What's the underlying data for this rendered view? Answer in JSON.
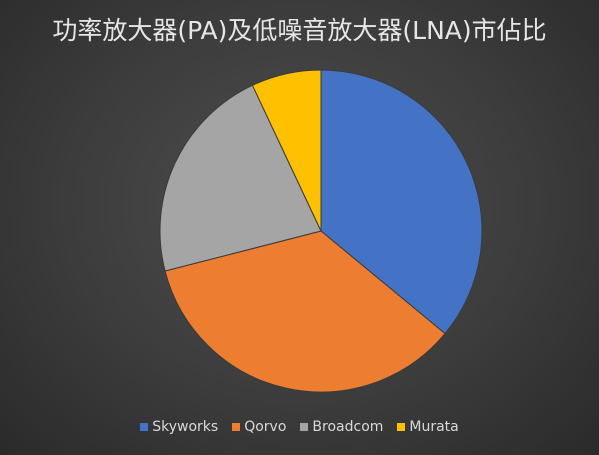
{
  "chart_data": {
    "type": "pie",
    "title": "功率放大器(PA)及低噪音放大器(LNA)市佔比",
    "categories": [
      "Skyworks",
      "Qorvo",
      "Broadcom",
      "Murata"
    ],
    "values": [
      36,
      35,
      22,
      7
    ],
    "colors": [
      "#4472c4",
      "#ed7d31",
      "#a5a5a5",
      "#ffc000"
    ],
    "start_angle_deg": 0,
    "direction": "clockwise",
    "legend_position": "bottom"
  }
}
